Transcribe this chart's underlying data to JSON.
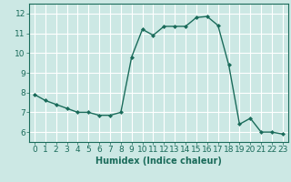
{
  "x": [
    0,
    1,
    2,
    3,
    4,
    5,
    6,
    7,
    8,
    9,
    10,
    11,
    12,
    13,
    14,
    15,
    16,
    17,
    18,
    19,
    20,
    21,
    22,
    23
  ],
  "y": [
    7.9,
    7.6,
    7.4,
    7.2,
    7.0,
    7.0,
    6.85,
    6.85,
    7.0,
    9.8,
    11.2,
    10.9,
    11.35,
    11.35,
    11.35,
    11.8,
    11.85,
    11.4,
    9.4,
    6.4,
    6.7,
    6.0,
    6.0,
    5.9
  ],
  "line_color": "#1a6b5a",
  "marker": "D",
  "marker_size": 2.0,
  "bg_color": "#cce8e4",
  "grid_color": "#ffffff",
  "xlabel": "Humidex (Indice chaleur)",
  "xlim": [
    -0.5,
    23.5
  ],
  "ylim": [
    5.5,
    12.5
  ],
  "xticks": [
    0,
    1,
    2,
    3,
    4,
    5,
    6,
    7,
    8,
    9,
    10,
    11,
    12,
    13,
    14,
    15,
    16,
    17,
    18,
    19,
    20,
    21,
    22,
    23
  ],
  "yticks": [
    6,
    7,
    8,
    9,
    10,
    11,
    12
  ],
  "tick_color": "#1a6b5a",
  "label_color": "#1a6b5a",
  "xlabel_fontsize": 7,
  "tick_fontsize": 6.5,
  "line_width": 1.0
}
